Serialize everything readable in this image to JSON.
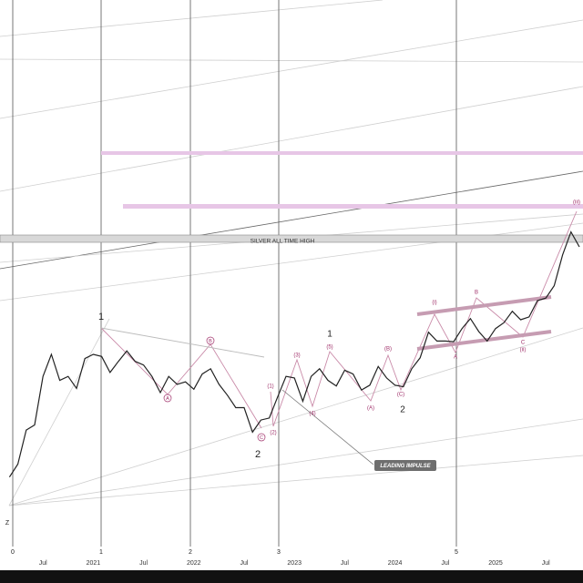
{
  "chart_data": {
    "type": "line",
    "log_scale": true,
    "categories": [
      null,
      null,
      null,
      null,
      "Jul",
      null,
      null,
      null,
      null,
      null,
      "2021",
      null,
      null,
      null,
      null,
      null,
      "Jul",
      null,
      null,
      null,
      null,
      null,
      "2022",
      null,
      null,
      null,
      null,
      null,
      "Jul",
      null,
      null,
      null,
      null,
      null,
      "2023",
      null,
      null,
      null,
      null,
      null,
      "Jul",
      null,
      null,
      null,
      null,
      null,
      "2024",
      null,
      null,
      null,
      null,
      null,
      "Jul",
      null,
      null,
      null,
      null,
      null,
      "2025",
      null,
      null,
      null,
      null,
      null,
      "Jul",
      null,
      null,
      null,
      null
    ],
    "series": [
      {
        "color": "#222222",
        "values": [
          14,
          15,
          18,
          18.5,
          24,
          27,
          23.5,
          24,
          22.5,
          26.4,
          27,
          26.7,
          24.5,
          26,
          27.5,
          26,
          25.5,
          24,
          22,
          24,
          23,
          23.3,
          22.4,
          24.3,
          25,
          23,
          21.7,
          20.3,
          20.3,
          17.8,
          19,
          19.2,
          21.5,
          24,
          23.8,
          21,
          24,
          25,
          23.5,
          22.8,
          24.8,
          24.3,
          22.3,
          22.9,
          25.3,
          23.8,
          22.9,
          22.7,
          25,
          26.5,
          30.4,
          29,
          29,
          28.9,
          31,
          32.7,
          30.5,
          29,
          31,
          32,
          34,
          32.5,
          33,
          36,
          36.5,
          39,
          46,
          52,
          48
        ]
      }
    ],
    "ylim": [
      8.5,
      180
    ],
    "annotations": [
      "SILVER ALL TIME HIGH",
      "LEADING IMPULSE"
    ],
    "wave_labels": [
      "1",
      "2",
      "1",
      "2",
      "0",
      "1",
      "2",
      "3",
      "5",
      "Z"
    ],
    "minor_labels": [
      "(1)",
      "(2)",
      "(3)",
      "(4)",
      "(5)",
      "(A)",
      "(B)",
      "(C)",
      "(i)",
      "(ii)",
      "(iii)",
      "A",
      "B",
      "C"
    ],
    "circled_labels": [
      "A",
      "B",
      "C"
    ]
  }
}
